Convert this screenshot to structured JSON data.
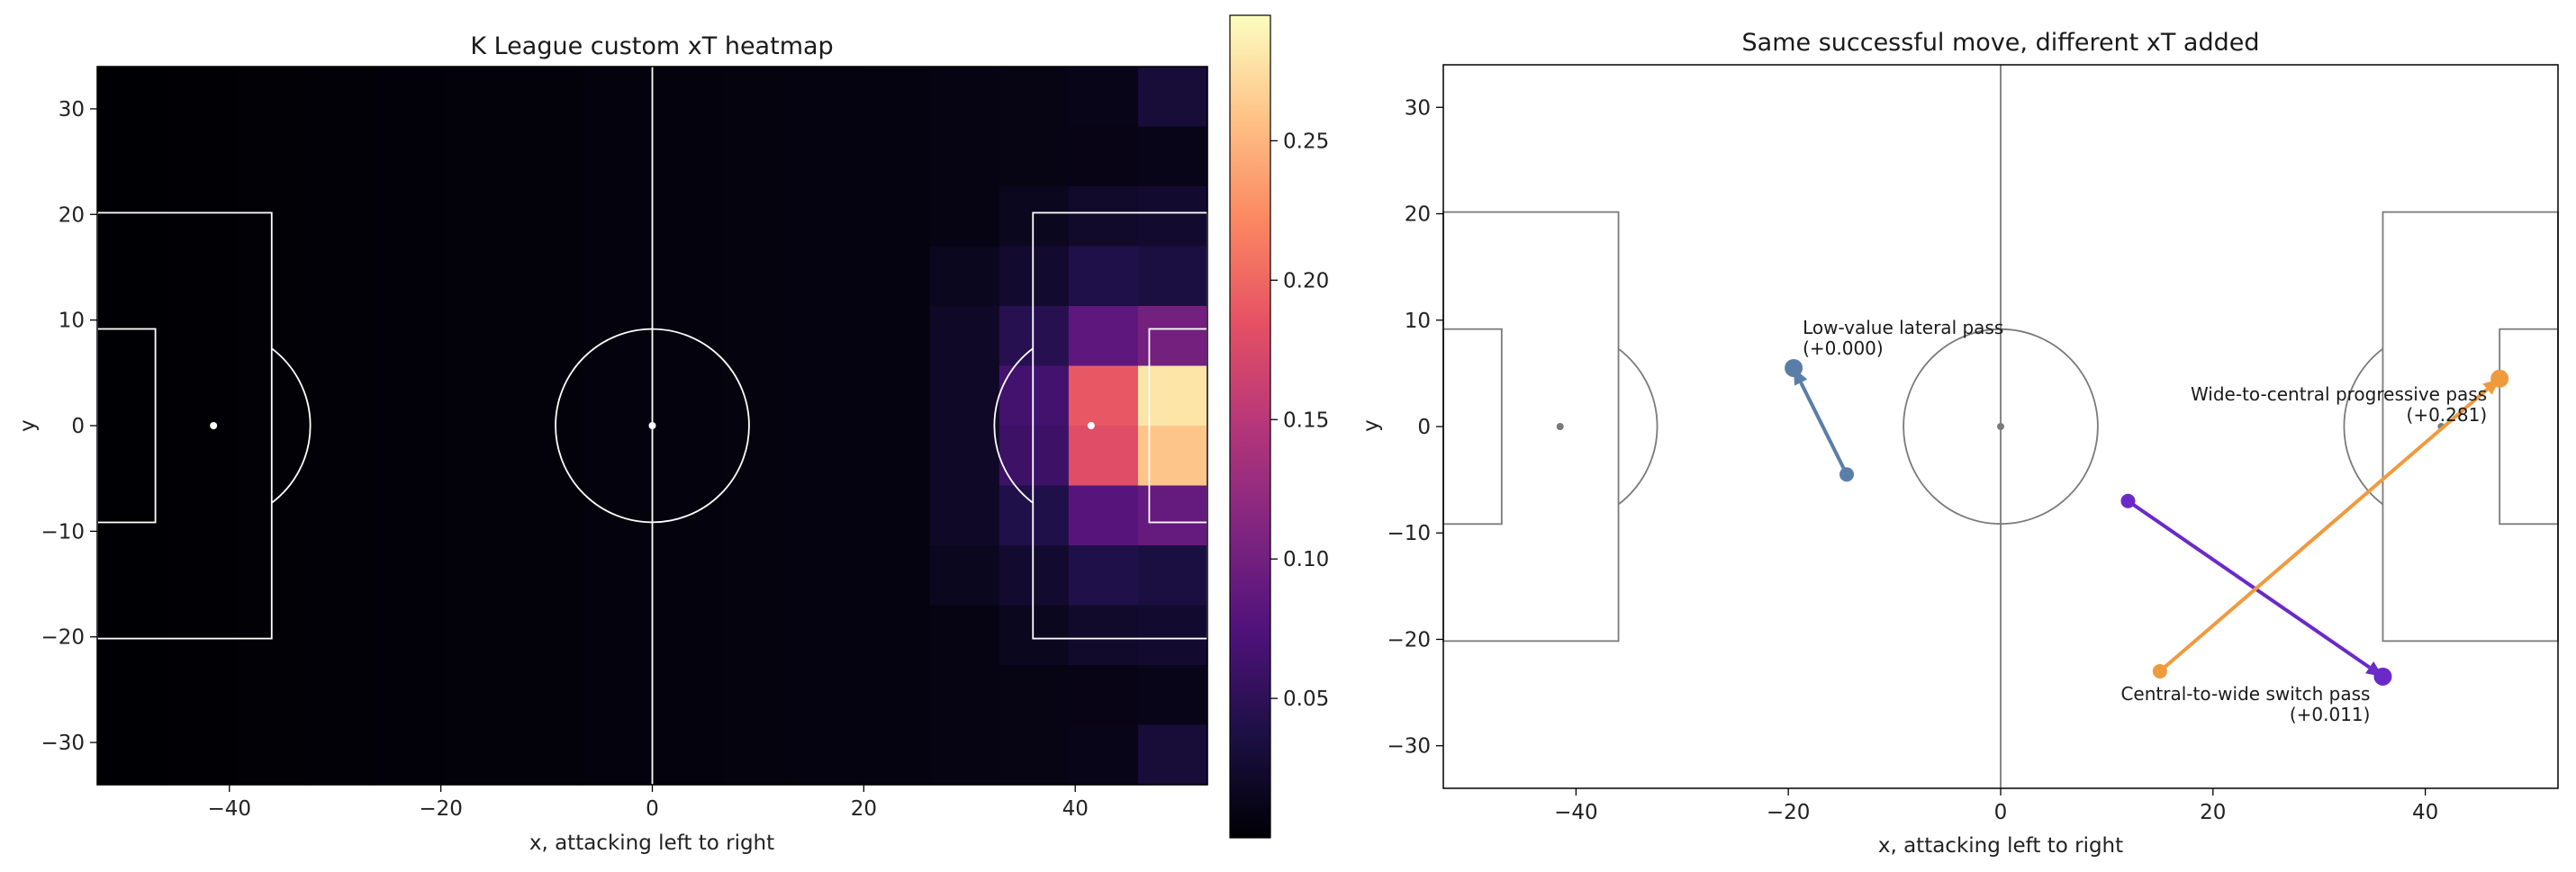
{
  "chart_data": [
    {
      "type": "heatmap",
      "title": "K League custom xT heatmap",
      "xlabel": "x, attacking left to right",
      "ylabel": "y",
      "xlim": [
        -52.5,
        52.5
      ],
      "ylim": [
        -34,
        34
      ],
      "xticks": [
        -40,
        -20,
        0,
        20,
        40
      ],
      "yticks": [
        -30,
        -20,
        -10,
        0,
        10,
        20,
        30
      ],
      "grid": false,
      "colormap": "magma",
      "colorbar": {
        "vmin": 0.0,
        "vmax": 0.295,
        "ticks": [
          0.05,
          0.1,
          0.15,
          0.2,
          0.25
        ]
      },
      "grid_cells": {
        "nx": 16,
        "ny": 12
      },
      "hot_cells": [
        {
          "col": 15,
          "row": 0,
          "value": 0.03
        },
        {
          "col": 14,
          "row": 0,
          "value": 0.012
        },
        {
          "col": 15,
          "row": 1,
          "value": 0.012
        },
        {
          "col": 14,
          "row": 1,
          "value": 0.01
        },
        {
          "col": 15,
          "row": 2,
          "value": 0.025
        },
        {
          "col": 14,
          "row": 2,
          "value": 0.022
        },
        {
          "col": 13,
          "row": 2,
          "value": 0.015
        },
        {
          "col": 15,
          "row": 3,
          "value": 0.035
        },
        {
          "col": 14,
          "row": 3,
          "value": 0.04
        },
        {
          "col": 13,
          "row": 3,
          "value": 0.025
        },
        {
          "col": 12,
          "row": 3,
          "value": 0.015
        },
        {
          "col": 15,
          "row": 4,
          "value": 0.1
        },
        {
          "col": 14,
          "row": 4,
          "value": 0.085
        },
        {
          "col": 13,
          "row": 4,
          "value": 0.045
        },
        {
          "col": 12,
          "row": 4,
          "value": 0.02
        },
        {
          "col": 15,
          "row": 5,
          "value": 0.28
        },
        {
          "col": 14,
          "row": 5,
          "value": 0.19
        },
        {
          "col": 13,
          "row": 5,
          "value": 0.065
        },
        {
          "col": 12,
          "row": 5,
          "value": 0.02
        },
        {
          "col": 15,
          "row": 6,
          "value": 0.26
        },
        {
          "col": 14,
          "row": 6,
          "value": 0.18
        },
        {
          "col": 13,
          "row": 6,
          "value": 0.06
        },
        {
          "col": 12,
          "row": 6,
          "value": 0.02
        },
        {
          "col": 15,
          "row": 7,
          "value": 0.09
        },
        {
          "col": 14,
          "row": 7,
          "value": 0.08
        },
        {
          "col": 13,
          "row": 7,
          "value": 0.04
        },
        {
          "col": 12,
          "row": 7,
          "value": 0.02
        },
        {
          "col": 15,
          "row": 8,
          "value": 0.035
        },
        {
          "col": 14,
          "row": 8,
          "value": 0.04
        },
        {
          "col": 13,
          "row": 8,
          "value": 0.025
        },
        {
          "col": 12,
          "row": 8,
          "value": 0.015
        },
        {
          "col": 15,
          "row": 9,
          "value": 0.025
        },
        {
          "col": 14,
          "row": 9,
          "value": 0.022
        },
        {
          "col": 13,
          "row": 9,
          "value": 0.015
        },
        {
          "col": 15,
          "row": 10,
          "value": 0.012
        },
        {
          "col": 14,
          "row": 10,
          "value": 0.01
        },
        {
          "col": 15,
          "row": 11,
          "value": 0.03
        },
        {
          "col": 14,
          "row": 11,
          "value": 0.012
        }
      ],
      "background_value": 0.005
    },
    {
      "type": "scatter",
      "title": "Same successful move, different xT added",
      "xlabel": "x, attacking left to right",
      "ylabel": "y",
      "xlim": [
        -52.5,
        52.5
      ],
      "ylim": [
        -34,
        34
      ],
      "xticks": [
        -40,
        -20,
        0,
        20,
        40
      ],
      "yticks": [
        -30,
        -20,
        -10,
        0,
        10,
        20,
        30
      ],
      "grid": false,
      "passes": [
        {
          "label": "Low-value lateral pass",
          "value_label": "(+0.000)",
          "start": [
            -14.5,
            -4.5
          ],
          "end": [
            -19.5,
            5.5
          ],
          "color": "#5a7ea8"
        },
        {
          "label": "Central-to-wide switch pass",
          "value_label": "(+0.011)",
          "start": [
            12,
            -7
          ],
          "end": [
            36,
            -23.5
          ],
          "color": "#6a2ac8"
        },
        {
          "label": "Wide-to-central progressive pass",
          "value_label": "(+0.281)",
          "start": [
            15,
            -23
          ],
          "end": [
            47,
            4.5
          ],
          "color": "#f09a3e"
        }
      ]
    }
  ]
}
